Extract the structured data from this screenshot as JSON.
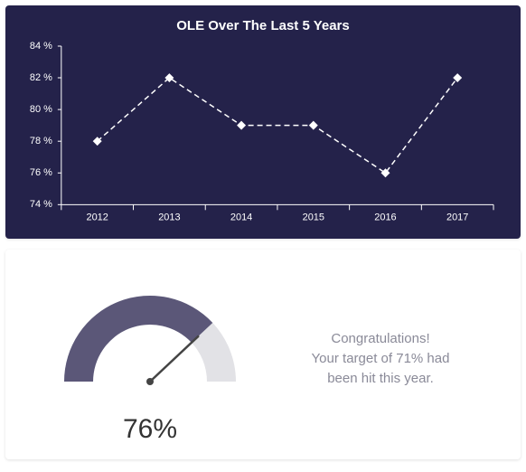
{
  "line_chart": {
    "type": "line",
    "title": "OLE Over The Last 5 Years",
    "title_fontsize": 15,
    "title_color": "#ffffff",
    "background_color": "#24224a",
    "axis_line_color": "#ffffff",
    "tick_color": "#ffffff",
    "tick_fontsize": 11,
    "line_color": "#ffffff",
    "line_dash": "6,4",
    "line_width": 1.5,
    "marker_shape": "diamond",
    "marker_size": 6,
    "marker_fill": "#ffffff",
    "categories": [
      "2012",
      "2013",
      "2014",
      "2015",
      "2016",
      "2017"
    ],
    "values": [
      78,
      82,
      79,
      79,
      76,
      82
    ],
    "ylim": [
      74,
      84
    ],
    "ytick_step": 2,
    "ytick_suffix": " %"
  },
  "gauge": {
    "type": "gauge",
    "value_pct": 76,
    "value_display": "76%",
    "value_fontsize": 30,
    "value_color": "#333333",
    "arc_fill_color": "#5b5778",
    "arc_track_color": "#e2e2e6",
    "needle_color": "#444444",
    "arc_thickness": 32,
    "message_line1": "Congratulations!",
    "message_line2": "Your target of 71% had",
    "message_line3": "been hit this year.",
    "message_color": "#8a8a98",
    "message_fontsize": 15,
    "background_color": "#ffffff"
  }
}
